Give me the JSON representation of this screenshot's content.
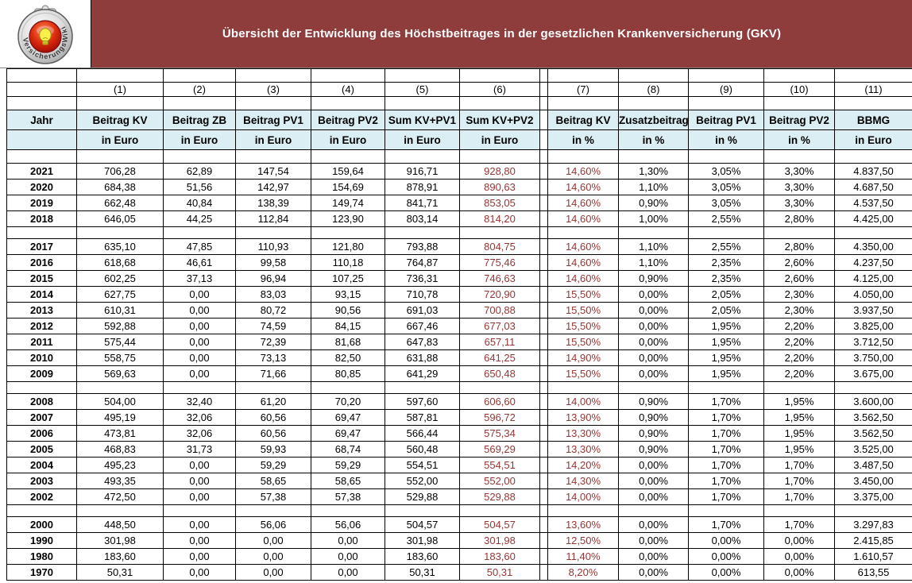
{
  "title": "Übersicht der Entwicklung des Höchstbeitrages in der gesetzlichen Krankenversicherung (GKV)",
  "logo": {
    "name": "VersicherungsWiki",
    "ring_text": "VersicherungsWiki"
  },
  "colors": {
    "band": "#8e3c3c",
    "header_bg": "#daeef3",
    "sum_text": "#963634",
    "border": "#000000"
  },
  "table": {
    "column_numbers": [
      "(1)",
      "(2)",
      "(3)",
      "(4)",
      "(5)",
      "(6)",
      "(7)",
      "(8)",
      "(9)",
      "(10)",
      "(11)"
    ],
    "headers": [
      {
        "label": "Jahr",
        "unit": ""
      },
      {
        "label": "Beitrag KV",
        "unit": "in Euro"
      },
      {
        "label": "Beitrag ZB",
        "unit": "in Euro"
      },
      {
        "label": "Beitrag PV1",
        "unit": "in Euro"
      },
      {
        "label": "Beitrag PV2",
        "unit": "in Euro"
      },
      {
        "label": "Sum KV+PV1",
        "unit": "in Euro"
      },
      {
        "label": "Sum KV+PV2",
        "unit": "in Euro"
      },
      {
        "label": "Beitrag KV",
        "unit": "in %"
      },
      {
        "label": "Zusatzbeitrag",
        "unit": "in %"
      },
      {
        "label": "Beitrag PV1",
        "unit": "in %"
      },
      {
        "label": "Beitrag PV2",
        "unit": "in %"
      },
      {
        "label": "BBMG",
        "unit": "in Euro"
      }
    ],
    "groups": [
      {
        "rows": [
          [
            "2021",
            "706,28",
            "62,89",
            "147,54",
            "159,64",
            "916,71",
            "928,80",
            "14,60%",
            "1,30%",
            "3,05%",
            "3,30%",
            "4.837,50"
          ],
          [
            "2020",
            "684,38",
            "51,56",
            "142,97",
            "154,69",
            "878,91",
            "890,63",
            "14,60%",
            "1,10%",
            "3,05%",
            "3,30%",
            "4.687,50"
          ],
          [
            "2019",
            "662,48",
            "40,84",
            "138,39",
            "149,74",
            "841,71",
            "853,05",
            "14,60%",
            "0,90%",
            "3,05%",
            "3,30%",
            "4.537,50"
          ],
          [
            "2018",
            "646,05",
            "44,25",
            "112,84",
            "123,90",
            "803,14",
            "814,20",
            "14,60%",
            "1,00%",
            "2,55%",
            "2,80%",
            "4.425,00"
          ]
        ]
      },
      {
        "rows": [
          [
            "2017",
            "635,10",
            "47,85",
            "110,93",
            "121,80",
            "793,88",
            "804,75",
            "14,60%",
            "1,10%",
            "2,55%",
            "2,80%",
            "4.350,00"
          ],
          [
            "2016",
            "618,68",
            "46,61",
            "99,58",
            "110,18",
            "764,87",
            "775,46",
            "14,60%",
            "1,10%",
            "2,35%",
            "2,60%",
            "4.237,50"
          ],
          [
            "2015",
            "602,25",
            "37,13",
            "96,94",
            "107,25",
            "736,31",
            "746,63",
            "14,60%",
            "0,90%",
            "2,35%",
            "2,60%",
            "4.125,00"
          ],
          [
            "2014",
            "627,75",
            "0,00",
            "83,03",
            "93,15",
            "710,78",
            "720,90",
            "15,50%",
            "0,00%",
            "2,05%",
            "2,30%",
            "4.050,00"
          ],
          [
            "2013",
            "610,31",
            "0,00",
            "80,72",
            "90,56",
            "691,03",
            "700,88",
            "15,50%",
            "0,00%",
            "2,05%",
            "2,30%",
            "3.937,50"
          ],
          [
            "2012",
            "592,88",
            "0,00",
            "74,59",
            "84,15",
            "667,46",
            "677,03",
            "15,50%",
            "0,00%",
            "1,95%",
            "2,20%",
            "3.825,00"
          ],
          [
            "2011",
            "575,44",
            "0,00",
            "72,39",
            "81,68",
            "647,83",
            "657,11",
            "15,50%",
            "0,00%",
            "1,95%",
            "2,20%",
            "3.712,50"
          ],
          [
            "2010",
            "558,75",
            "0,00",
            "73,13",
            "82,50",
            "631,88",
            "641,25",
            "14,90%",
            "0,00%",
            "1,95%",
            "2,20%",
            "3.750,00"
          ],
          [
            "2009",
            "569,63",
            "0,00",
            "71,66",
            "80,85",
            "641,29",
            "650,48",
            "15,50%",
            "0,00%",
            "1,95%",
            "2,20%",
            "3.675,00"
          ]
        ]
      },
      {
        "rows": [
          [
            "2008",
            "504,00",
            "32,40",
            "61,20",
            "70,20",
            "597,60",
            "606,60",
            "14,00%",
            "0,90%",
            "1,70%",
            "1,95%",
            "3.600,00"
          ],
          [
            "2007",
            "495,19",
            "32,06",
            "60,56",
            "69,47",
            "587,81",
            "596,72",
            "13,90%",
            "0,90%",
            "1,70%",
            "1,95%",
            "3.562,50"
          ],
          [
            "2006",
            "473,81",
            "32,06",
            "60,56",
            "69,47",
            "566,44",
            "575,34",
            "13,30%",
            "0,90%",
            "1,70%",
            "1,95%",
            "3.562,50"
          ],
          [
            "2005",
            "468,83",
            "31,73",
            "59,93",
            "68,74",
            "560,48",
            "569,29",
            "13,30%",
            "0,90%",
            "1,70%",
            "1,95%",
            "3.525,00"
          ],
          [
            "2004",
            "495,23",
            "0,00",
            "59,29",
            "59,29",
            "554,51",
            "554,51",
            "14,20%",
            "0,00%",
            "1,70%",
            "1,70%",
            "3.487,50"
          ],
          [
            "2003",
            "493,35",
            "0,00",
            "58,65",
            "58,65",
            "552,00",
            "552,00",
            "14,30%",
            "0,00%",
            "1,70%",
            "1,70%",
            "3.450,00"
          ],
          [
            "2002",
            "472,50",
            "0,00",
            "57,38",
            "57,38",
            "529,88",
            "529,88",
            "14,00%",
            "0,00%",
            "1,70%",
            "1,70%",
            "3.375,00"
          ]
        ]
      },
      {
        "rows": [
          [
            "2000",
            "448,50",
            "0,00",
            "56,06",
            "56,06",
            "504,57",
            "504,57",
            "13,60%",
            "0,00%",
            "1,70%",
            "1,70%",
            "3.297,83"
          ],
          [
            "1990",
            "301,98",
            "0,00",
            "0,00",
            "0,00",
            "301,98",
            "301,98",
            "12,50%",
            "0,00%",
            "0,00%",
            "0,00%",
            "2.415,85"
          ],
          [
            "1980",
            "183,60",
            "0,00",
            "0,00",
            "0,00",
            "183,60",
            "183,60",
            "11,40%",
            "0,00%",
            "0,00%",
            "0,00%",
            "1.610,57"
          ],
          [
            "1970",
            "50,31",
            "0,00",
            "0,00",
            "0,00",
            "50,31",
            "50,31",
            "8,20%",
            "0,00%",
            "0,00%",
            "0,00%",
            "613,55"
          ]
        ]
      }
    ]
  }
}
